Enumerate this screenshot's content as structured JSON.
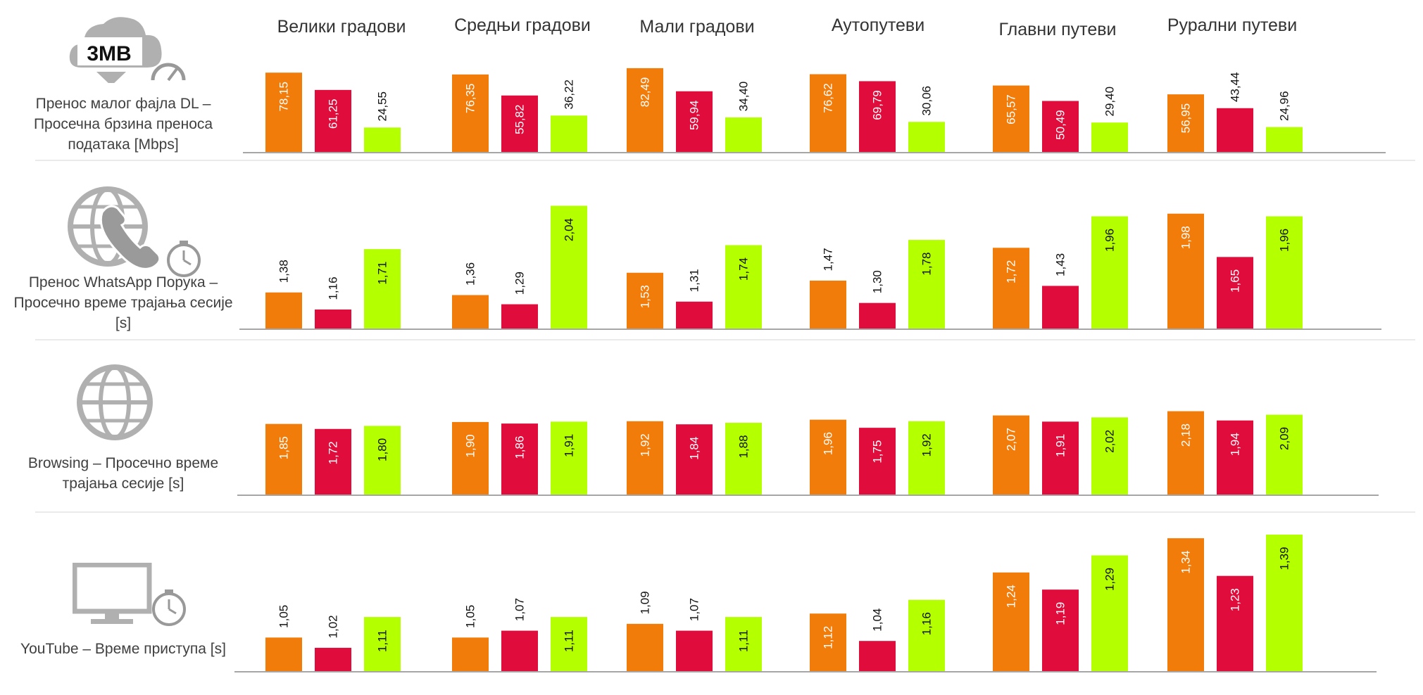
{
  "chart_data": {
    "type": "bar",
    "categories": [
      "Велики градови",
      "Средњи градови",
      "Мали градови",
      "Аутопутеви",
      "Главни путеви",
      "Рурални путеви"
    ],
    "series_colors": [
      "#f27c0a",
      "#e00d3c",
      "#b4ff00"
    ],
    "legend": "none",
    "rows": [
      {
        "id": "dl",
        "label": "Пренос малог фајла DL – Просечна брзина преноса података [Mbps]",
        "icon": "cloud-download-speed-icon",
        "icon_text": "3MB",
        "ylim": [
          0,
          90
        ],
        "values": [
          [
            "78,15",
            "61,25",
            "24,55"
          ],
          [
            "76,35",
            "55,82",
            "36,22"
          ],
          [
            "82,49",
            "59,94",
            "34,40"
          ],
          [
            "76,62",
            "69,79",
            "30,06"
          ],
          [
            "65,57",
            "50,49",
            "29,40"
          ],
          [
            "56,95",
            "43,44",
            "24,96"
          ]
        ]
      },
      {
        "id": "whatsapp",
        "label": "Пренос WhatsApp Порука – Просечно време трајања сесије [s]",
        "icon": "globe-phone-timer-icon",
        "ylim": [
          1.1,
          2.0
        ],
        "values": [
          [
            "1,38",
            "1,16",
            "1,71"
          ],
          [
            "1,36",
            "1,29",
            "2,04"
          ],
          [
            "1,53",
            "1,31",
            "1,74"
          ],
          [
            "1,47",
            "1,30",
            "1,78"
          ],
          [
            "1,72",
            "1,43",
            "1,96"
          ],
          [
            "1,98",
            "1,65",
            "1,96"
          ]
        ]
      },
      {
        "id": "browsing",
        "label": "Browsing – Просечно време трајања сесије [s]",
        "icon": "globe-icon",
        "ylim": [
          0,
          2.3
        ],
        "values": [
          [
            "1,85",
            "1,72",
            "1,80"
          ],
          [
            "1,90",
            "1,86",
            "1,91"
          ],
          [
            "1,92",
            "1,84",
            "1,88"
          ],
          [
            "1,96",
            "1,75",
            "1,92"
          ],
          [
            "2,07",
            "1,91",
            "2,02"
          ],
          [
            "2,18",
            "1,94",
            "2,09"
          ]
        ]
      },
      {
        "id": "youtube",
        "label": "YouTube – Време приступа [s]",
        "icon": "monitor-timer-icon",
        "ylim": [
          0.95,
          1.33
        ],
        "values": [
          [
            "1,05",
            "1,02",
            "1,11"
          ],
          [
            "1,05",
            "1,07",
            "1,11"
          ],
          [
            "1,09",
            "1,07",
            "1,11"
          ],
          [
            "1,12",
            "1,04",
            "1,16"
          ],
          [
            "1,24",
            "1,19",
            "1,29"
          ],
          [
            "1,34",
            "1,23",
            "1,39"
          ]
        ]
      }
    ]
  }
}
